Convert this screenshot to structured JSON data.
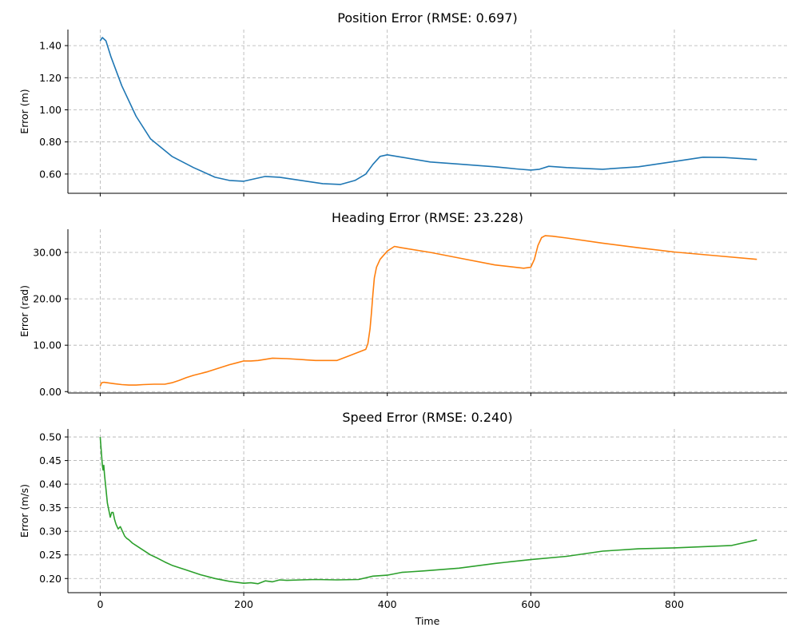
{
  "chart_data": [
    {
      "type": "line",
      "title": "Position Error (RMSE: 0.697)",
      "xlabel": "",
      "ylabel": "Error (m)",
      "color": "#1f77b4",
      "xlim": [
        -45,
        957
      ],
      "ylim": [
        0.48,
        1.5
      ],
      "xticks": [
        0,
        200,
        400,
        600,
        800
      ],
      "xtick_labels": [
        "",
        "",
        "",
        "",
        ""
      ],
      "yticks": [
        0.6,
        0.8,
        1.0,
        1.2,
        1.4
      ],
      "ytick_labels": [
        "0.60",
        "0.80",
        "1.00",
        "1.20",
        "1.40"
      ],
      "grid": true,
      "x": [
        0,
        3,
        8,
        15,
        30,
        50,
        70,
        100,
        130,
        160,
        180,
        200,
        215,
        230,
        250,
        280,
        310,
        335,
        355,
        370,
        380,
        390,
        400,
        420,
        460,
        500,
        550,
        580,
        600,
        612,
        625,
        650,
        700,
        750,
        800,
        840,
        870,
        915
      ],
      "y": [
        1.43,
        1.45,
        1.43,
        1.33,
        1.15,
        0.96,
        0.82,
        0.71,
        0.64,
        0.58,
        0.56,
        0.555,
        0.57,
        0.585,
        0.58,
        0.56,
        0.54,
        0.535,
        0.56,
        0.6,
        0.66,
        0.71,
        0.72,
        0.705,
        0.675,
        0.662,
        0.645,
        0.632,
        0.625,
        0.63,
        0.648,
        0.64,
        0.63,
        0.645,
        0.678,
        0.705,
        0.703,
        0.69
      ]
    },
    {
      "type": "line",
      "title": "Heading Error (RMSE: 23.228)",
      "xlabel": "",
      "ylabel": "Error (rad)",
      "color": "#ff7f0e",
      "xlim": [
        -45,
        957
      ],
      "ylim": [
        -0.3,
        35
      ],
      "xticks": [
        0,
        200,
        400,
        600,
        800
      ],
      "xtick_labels": [
        "",
        "",
        "",
        "",
        ""
      ],
      "yticks": [
        0,
        10,
        20,
        30
      ],
      "ytick_labels": [
        "0.00",
        "10.00",
        "20.00",
        "30.00"
      ],
      "grid": true,
      "x": [
        0,
        2,
        5,
        10,
        20,
        30,
        40,
        50,
        60,
        75,
        90,
        100,
        110,
        120,
        130,
        140,
        150,
        160,
        170,
        180,
        190,
        200,
        210,
        220,
        240,
        260,
        300,
        330,
        345,
        360,
        370,
        373,
        376,
        378,
        380,
        382,
        385,
        390,
        400,
        410,
        420,
        460,
        500,
        550,
        590,
        600,
        605,
        610,
        615,
        620,
        630,
        650,
        700,
        750,
        800,
        850,
        915
      ],
      "y": [
        1.2,
        1.9,
        2.0,
        1.9,
        1.7,
        1.5,
        1.4,
        1.4,
        1.5,
        1.6,
        1.6,
        1.9,
        2.4,
        3.0,
        3.5,
        3.9,
        4.3,
        4.8,
        5.3,
        5.8,
        6.2,
        6.6,
        6.6,
        6.7,
        7.2,
        7.1,
        6.7,
        6.7,
        7.6,
        8.5,
        9.1,
        10.3,
        13.5,
        17.0,
        21.0,
        24.5,
        26.8,
        28.5,
        30.3,
        31.3,
        31.0,
        30.0,
        28.8,
        27.3,
        26.6,
        26.8,
        28.5,
        31.5,
        33.2,
        33.6,
        33.5,
        33.1,
        32.0,
        31.0,
        30.1,
        29.4,
        28.5
      ]
    },
    {
      "type": "line",
      "title": "Speed Error (RMSE: 0.240)",
      "xlabel": "Time",
      "ylabel": "Error (m/s)",
      "color": "#2ca02c",
      "xlim": [
        -45,
        957
      ],
      "ylim": [
        0.17,
        0.517
      ],
      "xticks": [
        0,
        200,
        400,
        600,
        800
      ],
      "xtick_labels": [
        "0",
        "200",
        "400",
        "600",
        "800"
      ],
      "yticks": [
        0.2,
        0.25,
        0.3,
        0.35,
        0.4,
        0.45,
        0.5
      ],
      "ytick_labels": [
        "0.20",
        "0.25",
        "0.30",
        "0.35",
        "0.40",
        "0.45",
        "0.50"
      ],
      "grid": true,
      "x": [
        0,
        1,
        2,
        3,
        4,
        5,
        6,
        8,
        10,
        12,
        14,
        16,
        18,
        20,
        22,
        25,
        28,
        31,
        34,
        37,
        40,
        45,
        50,
        60,
        70,
        80,
        90,
        100,
        120,
        140,
        160,
        180,
        200,
        210,
        220,
        230,
        240,
        250,
        260,
        280,
        300,
        330,
        360,
        380,
        400,
        420,
        450,
        500,
        550,
        600,
        650,
        700,
        750,
        800,
        850,
        880,
        915
      ],
      "y": [
        0.5,
        0.48,
        0.46,
        0.44,
        0.43,
        0.44,
        0.42,
        0.39,
        0.36,
        0.345,
        0.33,
        0.34,
        0.34,
        0.325,
        0.315,
        0.305,
        0.31,
        0.3,
        0.29,
        0.285,
        0.282,
        0.275,
        0.27,
        0.26,
        0.25,
        0.243,
        0.235,
        0.228,
        0.218,
        0.208,
        0.2,
        0.194,
        0.19,
        0.191,
        0.189,
        0.195,
        0.193,
        0.197,
        0.196,
        0.197,
        0.198,
        0.197,
        0.198,
        0.205,
        0.207,
        0.213,
        0.216,
        0.222,
        0.232,
        0.24,
        0.247,
        0.258,
        0.263,
        0.265,
        0.268,
        0.27,
        0.282
      ]
    }
  ]
}
